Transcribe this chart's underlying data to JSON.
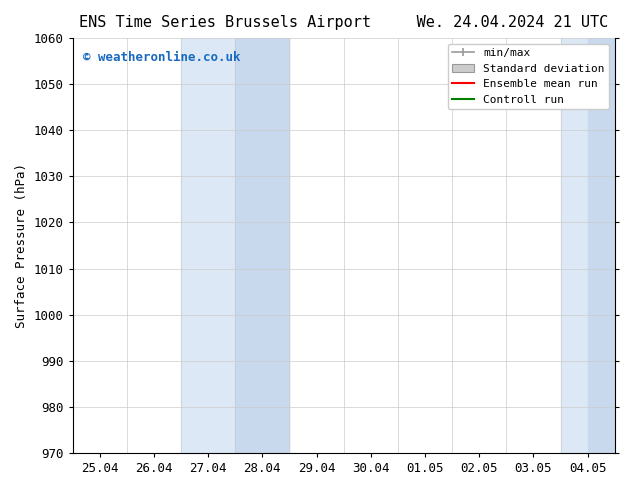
{
  "title_left": "ENS Time Series Brussels Airport",
  "title_right": "We. 24.04.2024 21 UTC",
  "ylabel": "Surface Pressure (hPa)",
  "ylim": [
    970,
    1060
  ],
  "yticks": [
    970,
    980,
    990,
    1000,
    1010,
    1020,
    1030,
    1040,
    1050,
    1060
  ],
  "xlabel_dates": [
    "25.04",
    "26.04",
    "27.04",
    "28.04",
    "29.04",
    "30.04",
    "01.05",
    "02.05",
    "03.05",
    "04.05"
  ],
  "x_values": [
    0,
    1,
    2,
    3,
    4,
    5,
    6,
    7,
    8,
    9
  ],
  "watermark_text": "© weatheronline.co.uk",
  "watermark_color": "#1a6bbf",
  "legend_labels": [
    "min/max",
    "Standard deviation",
    "Ensemble mean run",
    "Controll run"
  ],
  "bg_color": "#ffffff",
  "plot_bg_color": "#ffffff",
  "grid_color": "#cccccc",
  "tick_label_fontsize": 9,
  "axis_label_fontsize": 9,
  "title_fontsize": 11
}
